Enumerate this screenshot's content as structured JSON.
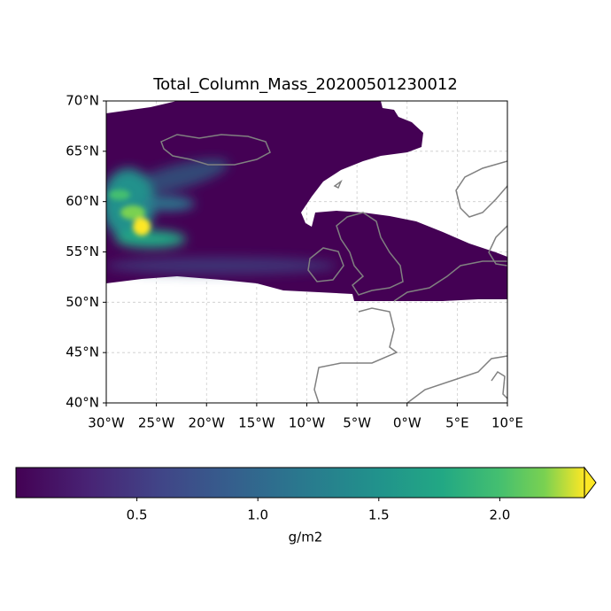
{
  "chart_data": {
    "type": "map",
    "title": "Total_Column_Mass_20200501230012",
    "xlim": [
      -30,
      10
    ],
    "xticks": [
      {
        "value": -30,
        "label": "30°W"
      },
      {
        "value": -25,
        "label": "25°W"
      },
      {
        "value": -20,
        "label": "20°W"
      },
      {
        "value": -15,
        "label": "15°W"
      },
      {
        "value": -10,
        "label": "10°W"
      },
      {
        "value": -5,
        "label": "5°W"
      },
      {
        "value": 0,
        "label": "0°W"
      },
      {
        "value": 5,
        "label": "5°E"
      },
      {
        "value": 10,
        "label": "10°E"
      }
    ],
    "ylim": [
      40,
      70
    ],
    "yticks": [
      {
        "value": 40,
        "label": "40°N"
      },
      {
        "value": 45,
        "label": "45°N"
      },
      {
        "value": 50,
        "label": "50°N"
      },
      {
        "value": 55,
        "label": "55°N"
      },
      {
        "value": 60,
        "label": "60°N"
      },
      {
        "value": 65,
        "label": "65°N"
      },
      {
        "value": 70,
        "label": "70°N"
      }
    ],
    "grid": true,
    "colorbar": {
      "label": "g/m2",
      "lim": [
        0,
        2.35
      ],
      "ticks": [
        0.5,
        {
          "value": 1,
          "label": "1.0"
        },
        1.5,
        {
          "value": 2,
          "label": "2.0"
        }
      ]
    }
  }
}
